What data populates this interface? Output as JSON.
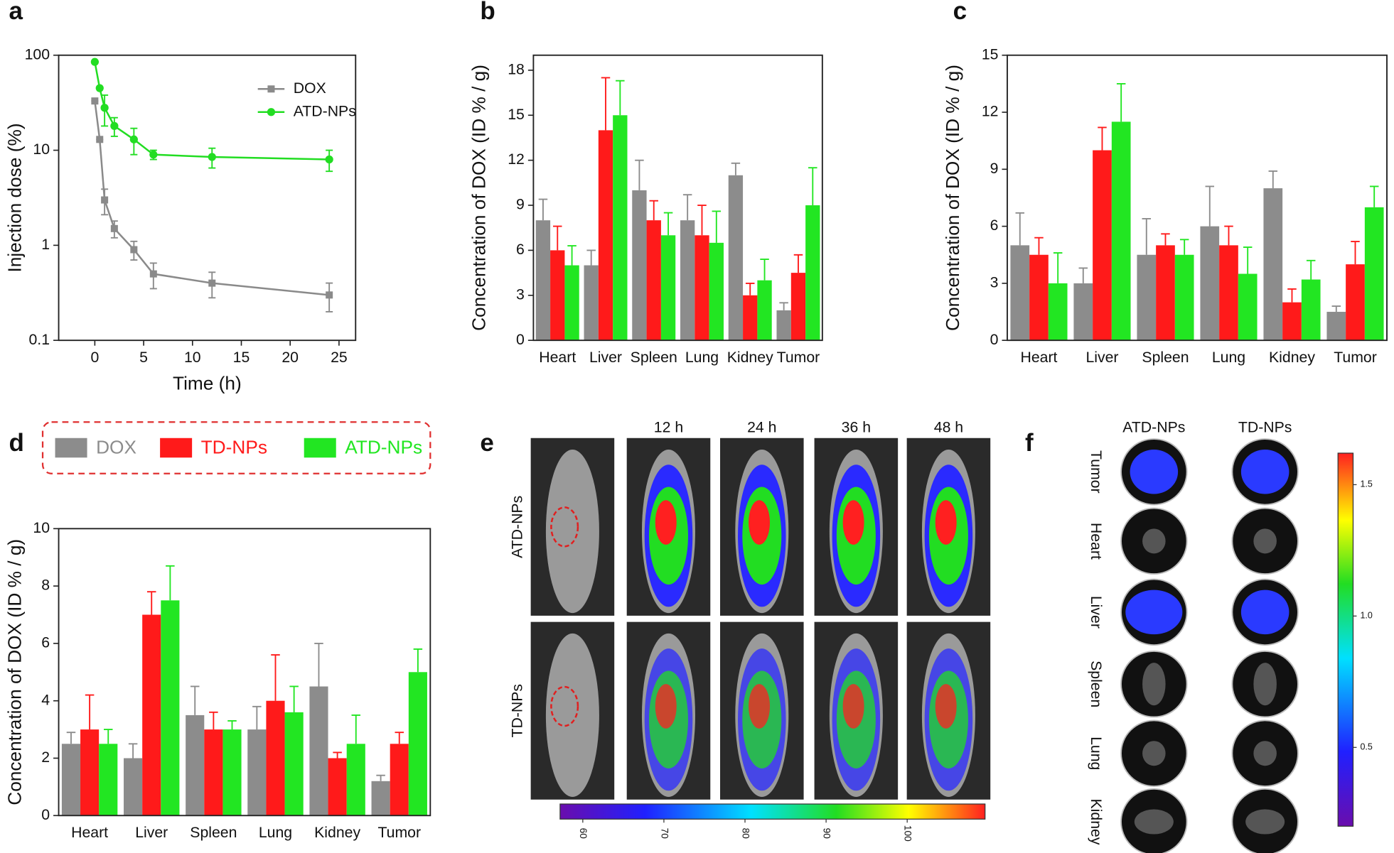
{
  "chart_data": [
    {
      "type": "line",
      "panel_label": "a",
      "x_label": "Time (h)",
      "y_label": "Injection dose (%)",
      "x": [
        0,
        0.5,
        1,
        2,
        4,
        6,
        12,
        24
      ],
      "series": [
        {
          "name": "DOX",
          "color": "#8a8a8a",
          "marker": "square",
          "values": [
            33,
            13,
            3,
            1.5,
            0.9,
            0.5,
            0.4,
            0.3
          ],
          "errors": [
            0,
            0,
            0.9,
            0.3,
            0.2,
            0.15,
            0.12,
            0.1
          ]
        },
        {
          "name": "ATD-NPs",
          "color": "#22dd22",
          "marker": "circle",
          "values": [
            85,
            45,
            28,
            18,
            13,
            9,
            8.5,
            8
          ],
          "errors": [
            0,
            0,
            10,
            4,
            4,
            1,
            2,
            2
          ]
        }
      ],
      "xlim": [
        -3.7,
        26.7
      ],
      "xticks": [
        0,
        5,
        10,
        15,
        20,
        25
      ],
      "ylim": [
        0.1,
        100
      ],
      "yticks": [
        0.1,
        1,
        10,
        100
      ],
      "log_y": true,
      "legend": "upper right"
    },
    {
      "type": "bar",
      "panel_label": "b",
      "y_label": "Concentration of DOX (ID % / g)",
      "categories": [
        "Heart",
        "Liver",
        "Spleen",
        "Lung",
        "Kidney",
        "Tumor"
      ],
      "series": [
        {
          "color": "#8c8c8c",
          "values": [
            8,
            5,
            10,
            8,
            11,
            2
          ],
          "errors": [
            1.4,
            1,
            2,
            1.7,
            0.8,
            0.5
          ]
        },
        {
          "color": "#ff1a1a",
          "values": [
            6,
            14,
            8,
            7,
            3,
            4.5
          ],
          "errors": [
            1.6,
            3.5,
            1.3,
            2,
            0.8,
            1.2
          ]
        },
        {
          "color": "#22e622",
          "values": [
            5,
            15,
            7,
            6.5,
            4,
            9
          ],
          "errors": [
            1.3,
            2.3,
            1.5,
            2.1,
            1.4,
            2.5
          ]
        }
      ],
      "ylim": [
        0,
        19
      ],
      "yticks": [
        0,
        3,
        6,
        9,
        12,
        15,
        18
      ]
    },
    {
      "type": "bar",
      "panel_label": "c",
      "y_label": "Concentration of DOX (ID % / g)",
      "categories": [
        "Heart",
        "Liver",
        "Spleen",
        "Lung",
        "Kidney",
        "Tumor"
      ],
      "series": [
        {
          "color": "#8c8c8c",
          "values": [
            5,
            3,
            4.5,
            6,
            8,
            1.5
          ],
          "errors": [
            1.7,
            0.8,
            1.9,
            2.1,
            0.9,
            0.3
          ]
        },
        {
          "color": "#ff1a1a",
          "values": [
            4.5,
            10,
            5,
            5,
            2,
            4
          ],
          "errors": [
            0.9,
            1.2,
            0.6,
            1,
            0.7,
            1.2
          ]
        },
        {
          "color": "#22e622",
          "values": [
            3,
            11.5,
            4.5,
            3.5,
            3.2,
            7
          ],
          "errors": [
            1.6,
            2,
            0.8,
            1.4,
            1,
            1.1
          ]
        }
      ],
      "ylim": [
        0,
        15
      ],
      "yticks": [
        0,
        3,
        6,
        9,
        12,
        15
      ]
    },
    {
      "type": "bar",
      "panel_label": "d",
      "y_label": "Concentration of DOX (ID % / g)",
      "categories": [
        "Heart",
        "Liver",
        "Spleen",
        "Lung",
        "Kidney",
        "Tumor"
      ],
      "series": [
        {
          "name": "DOX",
          "color": "#8c8c8c",
          "values": [
            2.5,
            2,
            3.5,
            3,
            4.5,
            1.2
          ],
          "errors": [
            0.4,
            0.5,
            1,
            0.8,
            1.5,
            0.2
          ]
        },
        {
          "name": "TD-NPs",
          "color": "#ff1a1a",
          "values": [
            3,
            7,
            3,
            4,
            2,
            2.5
          ],
          "errors": [
            1.2,
            0.8,
            0.6,
            1.6,
            0.2,
            0.4
          ]
        },
        {
          "name": "ATD-NPs",
          "color": "#22e622",
          "values": [
            2.5,
            7.5,
            3,
            3.6,
            2.5,
            5
          ],
          "errors": [
            0.5,
            1.2,
            0.3,
            0.9,
            1,
            0.8
          ]
        }
      ],
      "ylim": [
        0,
        10
      ],
      "yticks": [
        0,
        2,
        4,
        6,
        8,
        10
      ],
      "legend": "top box"
    }
  ],
  "imaging": [
    {
      "panel_label": "e",
      "time_labels": [
        "12 h",
        "24 h",
        "36 h",
        "48 h"
      ],
      "row_labels": [
        "ATD-NPs",
        "TD-NPs"
      ],
      "colorbar": {
        "lim": [
          57.2,
          109.6
        ],
        "ticks": [
          60,
          70,
          80,
          90,
          100
        ]
      }
    },
    {
      "panel_label": "f",
      "column_labels": [
        "ATD-NPs",
        "TD-NPs"
      ],
      "row_labels": [
        "Tumor",
        "Heart",
        "Liver",
        "Spleen",
        "Lung",
        "Kidney"
      ],
      "colorbar": {
        "lim": [
          0.2,
          1.62
        ],
        "ticks": [
          0.5,
          {
            "value": 1,
            "label": "1.0"
          },
          1.5
        ]
      }
    }
  ]
}
